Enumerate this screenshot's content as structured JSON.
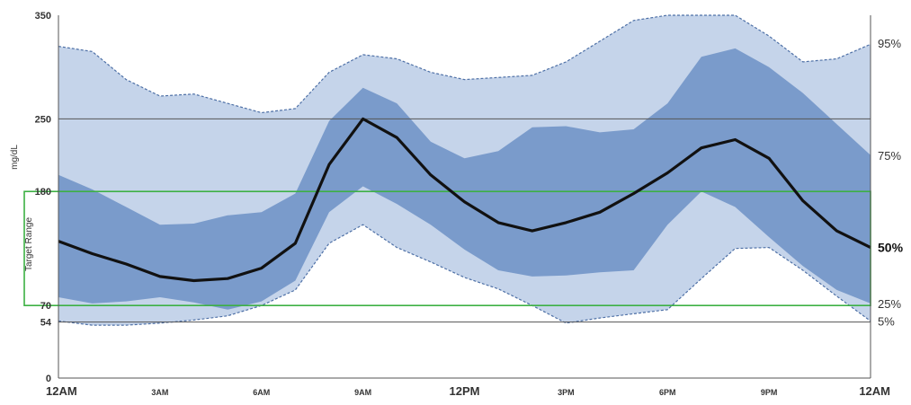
{
  "chart_data": {
    "type": "area",
    "title": "",
    "ylabel": "mg/dL",
    "target_range_label": "Target Range",
    "ylim": [
      0,
      350
    ],
    "y_ticks": [
      0,
      54,
      70,
      180,
      250,
      350
    ],
    "hlines": [
      54,
      250
    ],
    "target_range": [
      70,
      180
    ],
    "x_hours": [
      0,
      1,
      2,
      3,
      4,
      5,
      6,
      7,
      8,
      9,
      10,
      11,
      12,
      13,
      14,
      15,
      16,
      17,
      18,
      19,
      20,
      21,
      22,
      23,
      24
    ],
    "x_ticks": [
      {
        "hour": 0,
        "label": "12AM",
        "major": true
      },
      {
        "hour": 3,
        "label": "3AM",
        "major": false
      },
      {
        "hour": 6,
        "label": "6AM",
        "major": false
      },
      {
        "hour": 9,
        "label": "9AM",
        "major": false
      },
      {
        "hour": 12,
        "label": "12PM",
        "major": true
      },
      {
        "hour": 15,
        "label": "3PM",
        "major": false
      },
      {
        "hour": 18,
        "label": "6PM",
        "major": false
      },
      {
        "hour": 21,
        "label": "9PM",
        "major": false
      },
      {
        "hour": 24,
        "label": "12AM",
        "major": true
      }
    ],
    "series": [
      {
        "name": "95%",
        "values": [
          320,
          315,
          288,
          272,
          274,
          265,
          256,
          260,
          295,
          312,
          308,
          295,
          288,
          290,
          292,
          305,
          325,
          345,
          365,
          360,
          352,
          330,
          305,
          308,
          322
        ]
      },
      {
        "name": "75%",
        "values": [
          196,
          182,
          165,
          148,
          149,
          157,
          160,
          178,
          248,
          280,
          265,
          228,
          212,
          219,
          242,
          243,
          237,
          240,
          265,
          310,
          318,
          300,
          275,
          245,
          215
        ]
      },
      {
        "name": "50%",
        "values": [
          132,
          120,
          110,
          98,
          94,
          96,
          106,
          130,
          206,
          250,
          232,
          196,
          170,
          150,
          142,
          150,
          160,
          178,
          198,
          222,
          230,
          212,
          171,
          142,
          126
        ]
      },
      {
        "name": "25%",
        "values": [
          78,
          72,
          74,
          78,
          73,
          66,
          74,
          94,
          160,
          185,
          168,
          148,
          124,
          104,
          98,
          99,
          102,
          104,
          148,
          180,
          165,
          136,
          108,
          85,
          72
        ]
      },
      {
        "name": "5%",
        "values": [
          55,
          51,
          51,
          53,
          56,
          60,
          70,
          85,
          130,
          148,
          126,
          112,
          97,
          86,
          70,
          53,
          58,
          62,
          66,
          96,
          125,
          126,
          104,
          79,
          55
        ]
      }
    ],
    "colors": {
      "band_outer": "#c5d4ea",
      "band_inner": "#7a9bcb",
      "median": "#111111",
      "outer_edge": "#4e70a6",
      "target_line": "#3cb043",
      "hline": "#555555"
    },
    "grid": false
  }
}
